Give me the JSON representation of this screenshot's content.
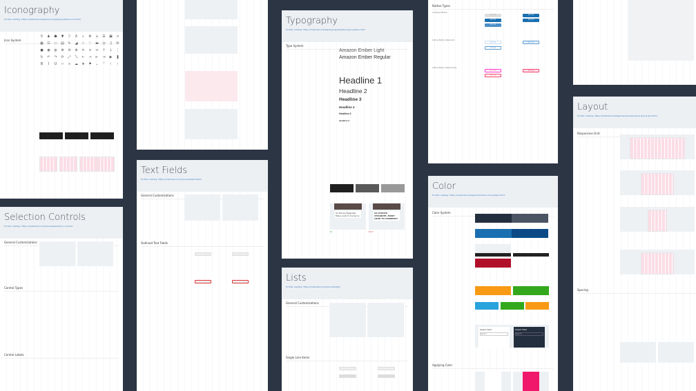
{
  "panels": {
    "iconography": {
      "title": "Iconography",
      "link": "Further reading: https://material.io/design/iconography/system-icons.html",
      "section": "Icon System"
    },
    "selection": {
      "title": "Selection Controls",
      "link": "Further reading: https://material.io/components/selection-controls",
      "sections": [
        "General Customizations",
        "Control Types",
        "Control Labels"
      ]
    },
    "textfields": {
      "title": "Text Fields",
      "link": "Further reading: https://material.io/components/text-fields",
      "sections": [
        "General Customizations",
        "Outlined Text Fields"
      ]
    },
    "typography": {
      "title": "Typography",
      "link": "Further reading: https://material.io/design/typography/the-type-system.html",
      "section": "Type System",
      "font_light": "Amazon Ember Light",
      "font_regular": "Amazon Ember Regular",
      "headlines": [
        "Headline 1",
        "Headline 2",
        "Headline 3",
        "Headline 4",
        "Headline 5",
        "Headline 6"
      ],
      "article_do": "As Stocks Stagnate, Many Look to Currency",
      "article_dont": "AS STOCKS STAGNATE, MANY LOOK TO CURRENCY",
      "do_label": "Do",
      "dont_label": "Don't"
    },
    "lists": {
      "title": "Lists",
      "link": "Further reading: https://material.io/components/lists",
      "sections": [
        "General Customizations",
        "Single Line Items"
      ]
    },
    "buttons": {
      "title": "Button Types",
      "sections": [
        "Contained Button",
        "Outline Button (Standard)",
        "Outline Button (Destructive)"
      ],
      "button_label": "BUTTON"
    },
    "color": {
      "title": "Color",
      "link": "Further reading: https://material.io/design/color/the-color-system.html",
      "sections": [
        "Color System",
        "Applying Color"
      ],
      "select_field": "Select Field",
      "search": "Search"
    },
    "layout": {
      "title": "Layout",
      "link": "Further reading: https://material.io/design/layout/responsive-layout-grid.html",
      "sections": [
        "Responsive Grid",
        "Spacing"
      ]
    }
  },
  "colors": {
    "background": "#2c3544",
    "primary": "#232f3e",
    "primary_variant": "#4b5563",
    "secondary": "#1a6fb0",
    "secondary_variant": "#0b4a86",
    "error": "#b0102a",
    "warning": "#f89a14",
    "success": "#33a81c",
    "info": "#29a3dc"
  }
}
